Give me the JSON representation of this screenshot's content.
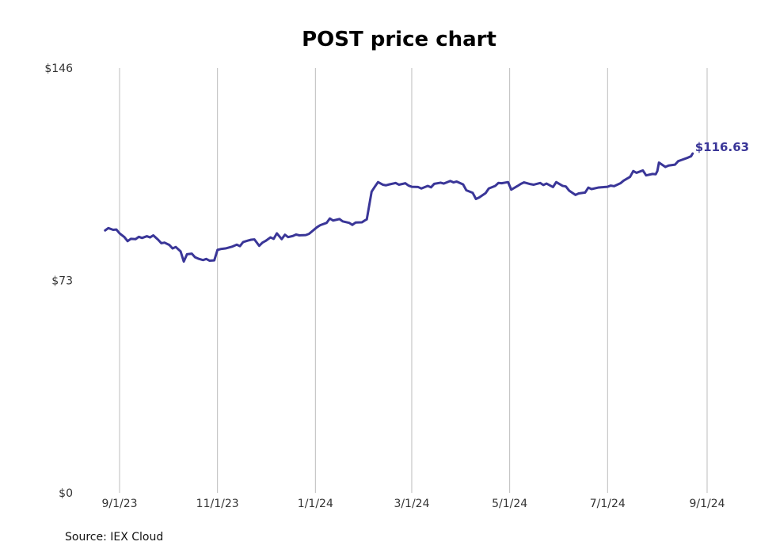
{
  "colors": {
    "series": "#3a3698",
    "grid": "#bdbdbd",
    "text": "#333333"
  },
  "chart_data": {
    "type": "line",
    "title": "POST price chart",
    "source": "Source: IEX Cloud",
    "xlabel": "",
    "ylabel": "",
    "ylim": [
      0,
      146
    ],
    "y_ticks": [
      {
        "value": 0,
        "label": "$0"
      },
      {
        "value": 73,
        "label": "$73"
      },
      {
        "value": 146,
        "label": "$146"
      }
    ],
    "x_ticks": [
      {
        "date": "2023-09-01",
        "label": "9/1/23"
      },
      {
        "date": "2023-11-01",
        "label": "11/1/23"
      },
      {
        "date": "2024-01-01",
        "label": "1/1/24"
      },
      {
        "date": "2024-03-01",
        "label": "3/1/24"
      },
      {
        "date": "2024-05-01",
        "label": "5/1/24"
      },
      {
        "date": "2024-07-01",
        "label": "7/1/24"
      },
      {
        "date": "2024-09-01",
        "label": "9/1/24"
      }
    ],
    "xlim": [
      "2023-08-23",
      "2024-09-01"
    ],
    "grid": {
      "vertical": true,
      "horizontal": false
    },
    "last_value_label": "$116.63",
    "series": [
      {
        "values": [
          [
            "2023-08-23",
            90.2
          ],
          [
            "2023-08-25",
            91.0
          ],
          [
            "2023-08-28",
            90.4
          ],
          [
            "2023-08-30",
            90.5
          ],
          [
            "2023-09-01",
            89.2
          ],
          [
            "2023-09-04",
            87.9
          ],
          [
            "2023-09-06",
            86.5
          ],
          [
            "2023-09-08",
            87.3
          ],
          [
            "2023-09-11",
            87.2
          ],
          [
            "2023-09-13",
            88.0
          ],
          [
            "2023-09-15",
            87.6
          ],
          [
            "2023-09-18",
            88.2
          ],
          [
            "2023-09-20",
            87.8
          ],
          [
            "2023-09-22",
            88.5
          ],
          [
            "2023-09-25",
            87.0
          ],
          [
            "2023-09-27",
            85.8
          ],
          [
            "2023-09-29",
            86.0
          ],
          [
            "2023-10-02",
            85.2
          ],
          [
            "2023-10-04",
            84.0
          ],
          [
            "2023-10-06",
            84.5
          ],
          [
            "2023-10-09",
            83.0
          ],
          [
            "2023-10-11",
            79.5
          ],
          [
            "2023-10-13",
            82.0
          ],
          [
            "2023-10-16",
            82.2
          ],
          [
            "2023-10-18",
            81.0
          ],
          [
            "2023-10-20",
            80.5
          ],
          [
            "2023-10-23",
            80.0
          ],
          [
            "2023-10-25",
            80.4
          ],
          [
            "2023-10-27",
            79.8
          ],
          [
            "2023-10-30",
            79.9
          ],
          [
            "2023-11-01",
            83.5
          ],
          [
            "2023-11-03",
            83.8
          ],
          [
            "2023-11-06",
            84.0
          ],
          [
            "2023-11-08",
            84.3
          ],
          [
            "2023-11-10",
            84.6
          ],
          [
            "2023-11-13",
            85.3
          ],
          [
            "2023-11-15",
            84.8
          ],
          [
            "2023-11-17",
            86.2
          ],
          [
            "2023-11-20",
            86.7
          ],
          [
            "2023-11-22",
            87.0
          ],
          [
            "2023-11-24",
            87.1
          ],
          [
            "2023-11-27",
            84.9
          ],
          [
            "2023-11-29",
            86.0
          ],
          [
            "2023-12-01",
            86.6
          ],
          [
            "2023-12-04",
            87.8
          ],
          [
            "2023-12-06",
            87.3
          ],
          [
            "2023-12-08",
            89.2
          ],
          [
            "2023-12-11",
            87.2
          ],
          [
            "2023-12-13",
            88.7
          ],
          [
            "2023-12-15",
            87.9
          ],
          [
            "2023-12-18",
            88.3
          ],
          [
            "2023-12-20",
            88.8
          ],
          [
            "2023-12-22",
            88.5
          ],
          [
            "2023-12-26",
            88.6
          ],
          [
            "2023-12-28",
            89.0
          ],
          [
            "2024-01-02",
            91.3
          ],
          [
            "2024-01-04",
            92.0
          ],
          [
            "2024-01-08",
            92.8
          ],
          [
            "2024-01-10",
            94.3
          ],
          [
            "2024-01-12",
            93.6
          ],
          [
            "2024-01-16",
            94.1
          ],
          [
            "2024-01-18",
            93.3
          ],
          [
            "2024-01-22",
            92.8
          ],
          [
            "2024-01-24",
            92.1
          ],
          [
            "2024-01-26",
            92.9
          ],
          [
            "2024-01-30",
            93.0
          ],
          [
            "2024-02-01",
            93.7
          ],
          [
            "2024-02-02",
            94.0
          ],
          [
            "2024-02-05",
            103.5
          ],
          [
            "2024-02-07",
            105.2
          ],
          [
            "2024-02-09",
            106.8
          ],
          [
            "2024-02-12",
            105.9
          ],
          [
            "2024-02-14",
            105.7
          ],
          [
            "2024-02-16",
            106.0
          ],
          [
            "2024-02-20",
            106.5
          ],
          [
            "2024-02-22",
            105.9
          ],
          [
            "2024-02-26",
            106.4
          ],
          [
            "2024-02-28",
            105.6
          ],
          [
            "2024-03-01",
            105.2
          ],
          [
            "2024-03-05",
            105.1
          ],
          [
            "2024-03-07",
            104.6
          ],
          [
            "2024-03-11",
            105.5
          ],
          [
            "2024-03-13",
            105.0
          ],
          [
            "2024-03-15",
            106.2
          ],
          [
            "2024-03-19",
            106.6
          ],
          [
            "2024-03-21",
            106.3
          ],
          [
            "2024-03-25",
            107.2
          ],
          [
            "2024-03-27",
            106.7
          ],
          [
            "2024-03-29",
            107.0
          ],
          [
            "2024-04-02",
            106.0
          ],
          [
            "2024-04-04",
            104.0
          ],
          [
            "2024-04-08",
            103.1
          ],
          [
            "2024-04-10",
            101.0
          ],
          [
            "2024-04-12",
            101.5
          ],
          [
            "2024-04-16",
            103.0
          ],
          [
            "2024-04-18",
            104.6
          ],
          [
            "2024-04-22",
            105.5
          ],
          [
            "2024-04-24",
            106.5
          ],
          [
            "2024-04-26",
            106.4
          ],
          [
            "2024-04-30",
            106.8
          ],
          [
            "2024-05-02",
            104.2
          ],
          [
            "2024-05-06",
            105.5
          ],
          [
            "2024-05-08",
            106.2
          ],
          [
            "2024-05-10",
            106.7
          ],
          [
            "2024-05-14",
            106.1
          ],
          [
            "2024-05-16",
            105.9
          ],
          [
            "2024-05-20",
            106.5
          ],
          [
            "2024-05-22",
            105.8
          ],
          [
            "2024-05-24",
            106.3
          ],
          [
            "2024-05-28",
            105.1
          ],
          [
            "2024-05-30",
            106.8
          ],
          [
            "2024-06-03",
            105.5
          ],
          [
            "2024-06-05",
            105.3
          ],
          [
            "2024-06-07",
            103.9
          ],
          [
            "2024-06-11",
            102.4
          ],
          [
            "2024-06-13",
            102.9
          ],
          [
            "2024-06-17",
            103.2
          ],
          [
            "2024-06-19",
            104.9
          ],
          [
            "2024-06-21",
            104.4
          ],
          [
            "2024-06-25",
            104.9
          ],
          [
            "2024-06-27",
            105.0
          ],
          [
            "2024-07-01",
            105.2
          ],
          [
            "2024-07-03",
            105.6
          ],
          [
            "2024-07-05",
            105.4
          ],
          [
            "2024-07-09",
            106.4
          ],
          [
            "2024-07-11",
            107.3
          ],
          [
            "2024-07-15",
            108.6
          ],
          [
            "2024-07-17",
            110.6
          ],
          [
            "2024-07-19",
            110.0
          ],
          [
            "2024-07-23",
            110.8
          ],
          [
            "2024-07-25",
            109.1
          ],
          [
            "2024-07-29",
            109.6
          ],
          [
            "2024-07-31",
            109.5
          ],
          [
            "2024-08-01",
            110.6
          ],
          [
            "2024-08-02",
            113.5
          ],
          [
            "2024-08-06",
            112.0
          ],
          [
            "2024-08-08",
            112.5
          ],
          [
            "2024-08-12",
            112.8
          ],
          [
            "2024-08-14",
            114.0
          ],
          [
            "2024-08-16",
            114.4
          ],
          [
            "2024-08-20",
            115.2
          ],
          [
            "2024-08-22",
            115.7
          ],
          [
            "2024-08-23",
            116.63
          ]
        ]
      }
    ]
  }
}
